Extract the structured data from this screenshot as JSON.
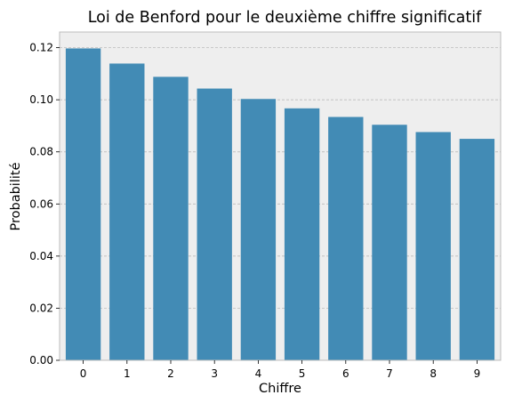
{
  "chart_data": {
    "type": "bar",
    "title": "Loi de Benford pour le deuxième chiffre significatif",
    "xlabel": "Chiffre",
    "ylabel": "Probabilité",
    "categories": [
      "0",
      "1",
      "2",
      "3",
      "4",
      "5",
      "6",
      "7",
      "8",
      "9"
    ],
    "values": [
      0.1197,
      0.1139,
      0.1088,
      0.1043,
      0.1003,
      0.0967,
      0.0934,
      0.0904,
      0.0876,
      0.085
    ],
    "ylim": [
      0,
      0.126
    ],
    "yticks": [
      0.0,
      0.02,
      0.04,
      0.06,
      0.08,
      0.1,
      0.12
    ],
    "ytick_labels": [
      "0.00",
      "0.02",
      "0.04",
      "0.06",
      "0.08",
      "0.10",
      "0.12"
    ],
    "grid": true,
    "colors": {
      "bar": "#428bb5",
      "plot_background": "#eeeeee",
      "grid": "#b3b3b3",
      "frame": "#bcbcbc"
    }
  }
}
